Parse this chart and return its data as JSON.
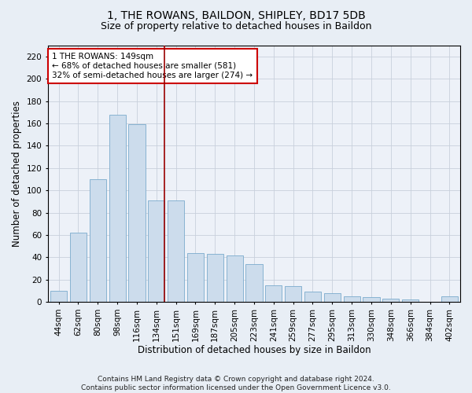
{
  "title": "1, THE ROWANS, BAILDON, SHIPLEY, BD17 5DB",
  "subtitle": "Size of property relative to detached houses in Baildon",
  "xlabel": "Distribution of detached houses by size in Baildon",
  "ylabel": "Number of detached properties",
  "categories": [
    "44sqm",
    "62sqm",
    "80sqm",
    "98sqm",
    "116sqm",
    "134sqm",
    "151sqm",
    "169sqm",
    "187sqm",
    "205sqm",
    "223sqm",
    "241sqm",
    "259sqm",
    "277sqm",
    "295sqm",
    "313sqm",
    "330sqm",
    "348sqm",
    "366sqm",
    "384sqm",
    "402sqm"
  ],
  "values": [
    10,
    62,
    110,
    168,
    159,
    91,
    91,
    44,
    43,
    42,
    34,
    15,
    14,
    9,
    8,
    5,
    4,
    3,
    2,
    0,
    5
  ],
  "bar_color": "#ccdcec",
  "bar_edge_color": "#7aabcc",
  "highlight_line_index": 5,
  "annotation_text": "1 THE ROWANS: 149sqm\n← 68% of detached houses are smaller (581)\n32% of semi-detached houses are larger (274) →",
  "annotation_box_color": "#ffffff",
  "annotation_box_edge": "#cc0000",
  "vline_color": "#990000",
  "ylim": [
    0,
    230
  ],
  "yticks": [
    0,
    20,
    40,
    60,
    80,
    100,
    120,
    140,
    160,
    180,
    200,
    220
  ],
  "bg_color": "#e8eef5",
  "plot_bg_color": "#edf1f8",
  "footer": "Contains HM Land Registry data © Crown copyright and database right 2024.\nContains public sector information licensed under the Open Government Licence v3.0.",
  "title_fontsize": 10,
  "subtitle_fontsize": 9,
  "axis_label_fontsize": 8.5,
  "tick_fontsize": 7.5,
  "annotation_fontsize": 7.5,
  "footer_fontsize": 6.5
}
